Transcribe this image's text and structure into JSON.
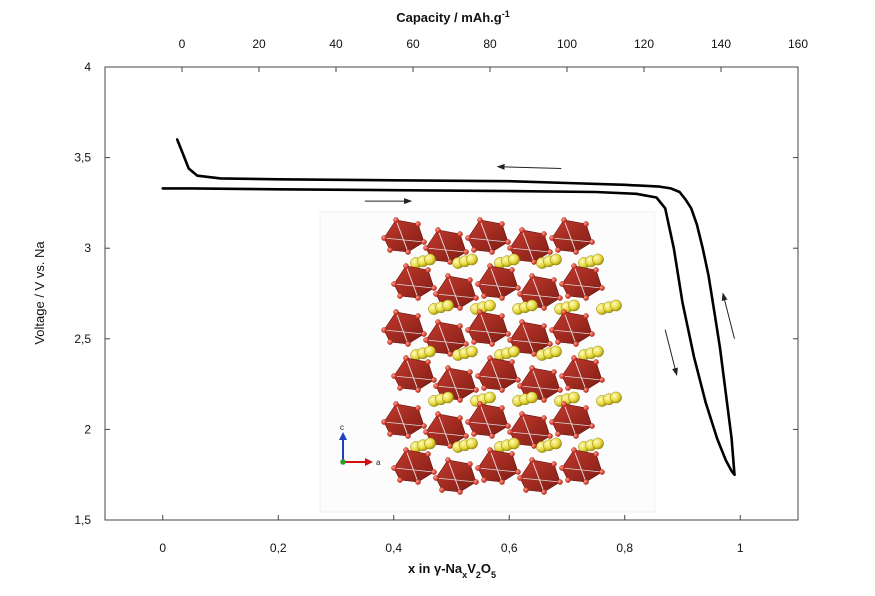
{
  "chart_data": {
    "type": "line",
    "top_axis": {
      "label": "Capacity / mAh.g",
      "label_superscript": "-1",
      "range": [
        -20,
        160
      ],
      "ticks": [
        0,
        20,
        40,
        60,
        80,
        100,
        120,
        140,
        160
      ],
      "tick_labels": [
        "0",
        "20",
        "40",
        "60",
        "80",
        "100",
        "120",
        "140",
        "160"
      ]
    },
    "x_axis": {
      "label_parts": {
        "prefix": "x in ",
        "gamma": "γ",
        "dash_na": "-Na",
        "sub_x": "x",
        "v": "V",
        "sub_2": "2",
        "o": "O",
        "sub_5": "5"
      },
      "range": [
        -0.1,
        1.1
      ],
      "ticks": [
        0,
        0.2,
        0.4,
        0.6,
        0.8,
        1
      ],
      "tick_labels": [
        "0",
        "0,2",
        "0,4",
        "0,6",
        "0,8",
        "1"
      ]
    },
    "y_axis": {
      "label": "Voltage / V vs. Na",
      "range": [
        1.5,
        4.0
      ],
      "ticks": [
        1.5,
        2.0,
        2.5,
        3.0,
        3.5,
        4.0
      ],
      "tick_labels": [
        "1,5",
        "2",
        "2,5",
        "3",
        "3,5",
        "4"
      ]
    },
    "series": [
      {
        "color": "#000000",
        "x": [
          0.0,
          0.05,
          0.2,
          0.4,
          0.6,
          0.75,
          0.82,
          0.855,
          0.87,
          0.885,
          0.9,
          0.92,
          0.94,
          0.96,
          0.975,
          0.985,
          0.99
        ],
        "y": [
          3.33,
          3.33,
          3.325,
          3.32,
          3.315,
          3.31,
          3.3,
          3.28,
          3.22,
          3.0,
          2.7,
          2.4,
          2.15,
          1.95,
          1.83,
          1.77,
          1.75
        ]
      },
      {
        "color": "#000000",
        "x": [
          0.99,
          0.985,
          0.975,
          0.965,
          0.955,
          0.945,
          0.935,
          0.925,
          0.915,
          0.905,
          0.895,
          0.88,
          0.86,
          0.8,
          0.7,
          0.6,
          0.4,
          0.2,
          0.1,
          0.06,
          0.045,
          0.035,
          0.025
        ],
        "y": [
          1.75,
          1.95,
          2.2,
          2.45,
          2.65,
          2.85,
          3.0,
          3.13,
          3.22,
          3.27,
          3.31,
          3.33,
          3.34,
          3.35,
          3.36,
          3.37,
          3.375,
          3.38,
          3.385,
          3.4,
          3.44,
          3.52,
          3.6
        ]
      }
    ],
    "annotations": [
      {
        "type": "arrow",
        "direction": "left",
        "from": [
          0.69,
          3.44
        ],
        "to": [
          0.58,
          3.45
        ]
      },
      {
        "type": "arrow",
        "direction": "right",
        "from": [
          0.35,
          3.26
        ],
        "to": [
          0.43,
          3.26
        ]
      },
      {
        "type": "arrow",
        "direction": "down",
        "from": [
          0.87,
          2.55
        ],
        "to": [
          0.89,
          2.3
        ]
      },
      {
        "type": "arrow",
        "direction": "up",
        "from": [
          0.99,
          2.5
        ],
        "to": [
          0.97,
          2.75
        ]
      }
    ],
    "inset": {
      "type": "image",
      "description": "crystal structure",
      "axis_labels": {
        "c": "c",
        "a": "a"
      }
    }
  }
}
